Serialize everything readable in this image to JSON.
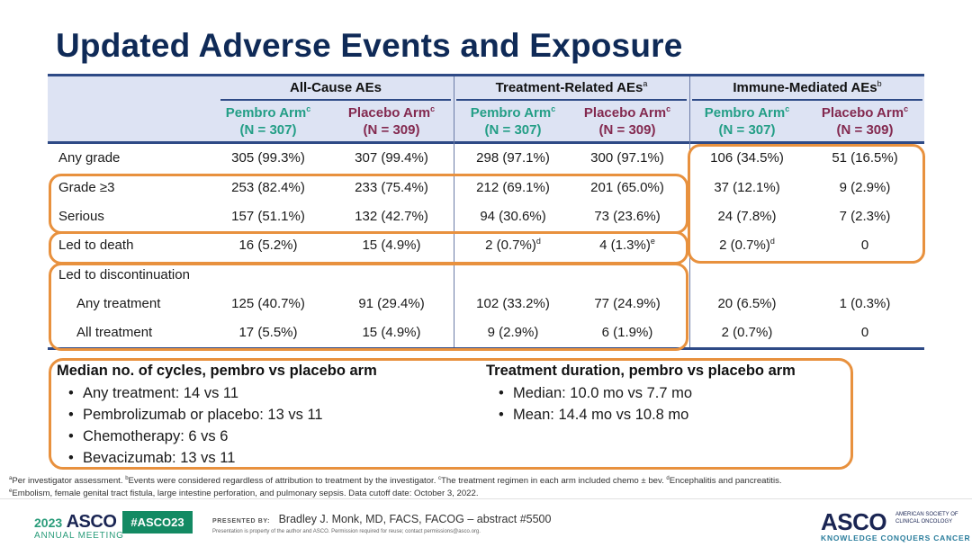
{
  "title": "Updated Adverse Events and Exposure",
  "table": {
    "groups": [
      {
        "label": "All-Cause AEs",
        "sup": ""
      },
      {
        "label": "Treatment-Related AEs",
        "sup": "a"
      },
      {
        "label": "Immune-Mediated AEs",
        "sup": "b"
      }
    ],
    "arms": [
      {
        "name": "Pembro Arm",
        "sup": "c",
        "n": "(N = 307)",
        "type": "pembro"
      },
      {
        "name": "Placebo Arm",
        "sup": "c",
        "n": "(N = 309)",
        "type": "placebo"
      },
      {
        "name": "Pembro Arm",
        "sup": "c",
        "n": "(N = 307)",
        "type": "pembro"
      },
      {
        "name": "Placebo Arm",
        "sup": "c",
        "n": "(N = 309)",
        "type": "placebo"
      },
      {
        "name": "Pembro Arm",
        "sup": "c",
        "n": "(N = 307)",
        "type": "pembro"
      },
      {
        "name": "Placebo Arm",
        "sup": "c",
        "n": "(N = 309)",
        "type": "placebo"
      }
    ],
    "rows": [
      {
        "label": "Any grade",
        "indent": false,
        "cells": [
          {
            "v": "305 (99.3%)",
            "s": ""
          },
          {
            "v": "307 (99.4%)",
            "s": ""
          },
          {
            "v": "298 (97.1%)",
            "s": ""
          },
          {
            "v": "300 (97.1%)",
            "s": ""
          },
          {
            "v": "106 (34.5%)",
            "s": ""
          },
          {
            "v": "51 (16.5%)",
            "s": ""
          }
        ]
      },
      {
        "label": "Grade ≥3",
        "indent": false,
        "cells": [
          {
            "v": "253 (82.4%)",
            "s": ""
          },
          {
            "v": "233 (75.4%)",
            "s": ""
          },
          {
            "v": "212 (69.1%)",
            "s": ""
          },
          {
            "v": "201 (65.0%)",
            "s": ""
          },
          {
            "v": "37 (12.1%)",
            "s": ""
          },
          {
            "v": "9 (2.9%)",
            "s": ""
          }
        ]
      },
      {
        "label": "Serious",
        "indent": false,
        "cells": [
          {
            "v": "157 (51.1%)",
            "s": ""
          },
          {
            "v": "132 (42.7%)",
            "s": ""
          },
          {
            "v": "94 (30.6%)",
            "s": ""
          },
          {
            "v": "73 (23.6%)",
            "s": ""
          },
          {
            "v": "24 (7.8%)",
            "s": ""
          },
          {
            "v": "7 (2.3%)",
            "s": ""
          }
        ]
      },
      {
        "label": "Led to death",
        "indent": false,
        "cells": [
          {
            "v": "16 (5.2%)",
            "s": ""
          },
          {
            "v": "15 (4.9%)",
            "s": ""
          },
          {
            "v": "2 (0.7%)",
            "s": "d"
          },
          {
            "v": "4 (1.3%)",
            "s": "e"
          },
          {
            "v": "2 (0.7%)",
            "s": "d"
          },
          {
            "v": "0",
            "s": ""
          }
        ]
      },
      {
        "label": "Led to discontinuation",
        "indent": false,
        "cells": [
          {
            "v": "",
            "s": ""
          },
          {
            "v": "",
            "s": ""
          },
          {
            "v": "",
            "s": ""
          },
          {
            "v": "",
            "s": ""
          },
          {
            "v": "",
            "s": ""
          },
          {
            "v": "",
            "s": ""
          }
        ]
      },
      {
        "label": "Any treatment",
        "indent": true,
        "cells": [
          {
            "v": "125 (40.7%)",
            "s": ""
          },
          {
            "v": "91 (29.4%)",
            "s": ""
          },
          {
            "v": "102 (33.2%)",
            "s": ""
          },
          {
            "v": "77 (24.9%)",
            "s": ""
          },
          {
            "v": "20 (6.5%)",
            "s": ""
          },
          {
            "v": "1 (0.3%)",
            "s": ""
          }
        ]
      },
      {
        "label": "All treatment",
        "indent": true,
        "cells": [
          {
            "v": "17 (5.5%)",
            "s": ""
          },
          {
            "v": "15 (4.9%)",
            "s": ""
          },
          {
            "v": "9 (2.9%)",
            "s": ""
          },
          {
            "v": "6 (1.9%)",
            "s": ""
          },
          {
            "v": "2 (0.7%)",
            "s": ""
          },
          {
            "v": "0",
            "s": ""
          }
        ]
      }
    ]
  },
  "cycles": {
    "title": "Median no. of cycles, pembro vs placebo arm",
    "items": [
      "Any treatment: 14 vs 11",
      "Pembrolizumab or placebo: 13 vs 11",
      "Chemotherapy: 6 vs 6",
      "Bevacizumab: 13 vs 11"
    ]
  },
  "duration": {
    "title": "Treatment duration, pembro vs placebo arm",
    "items": [
      "Median: 10.0 mo vs 7.7 mo",
      "Mean: 14.4 mo vs 10.8 mo"
    ]
  },
  "footnotes": {
    "line1": [
      {
        "sup": "a",
        "text": "Per investigator assessment. "
      },
      {
        "sup": "b",
        "text": "Events were considered regardless of attribution to treatment by the investigator. "
      },
      {
        "sup": "c",
        "text": "The treatment regimen in each arm included chemo ± bev. "
      },
      {
        "sup": "d",
        "text": "Encephalitis and pancreatitis."
      }
    ],
    "line2": [
      {
        "sup": "e",
        "text": "Embolism, female genital tract fistula, large intestine perforation, and pulmonary sepsis. Data cutoff date: October 3, 2022."
      }
    ]
  },
  "footer": {
    "meeting_year": "2023",
    "meeting_brand": "ASCO",
    "meeting_sub": "ANNUAL MEETING",
    "hashtag": "#ASCO23",
    "presented_by_label": "PRESENTED BY:",
    "presenter": "Bradley J. Monk, MD, FACS, FACOG – abstract #5500",
    "property_note": "Presentation is property of the author and ASCO. Permission required for reuse; contact permissions@asco.org.",
    "org_brand": "ASCO",
    "org_name": "AMERICAN SOCIETY OF CLINICAL ONCOLOGY",
    "org_tagline": "KNOWLEDGE CONQUERS CANCER"
  },
  "colors": {
    "title": "#0f2a57",
    "pembro": "#239e86",
    "placebo": "#83294f",
    "highlight": "#e8913e",
    "rule": "#2e4a86",
    "header_bg": "#dde3f3"
  }
}
